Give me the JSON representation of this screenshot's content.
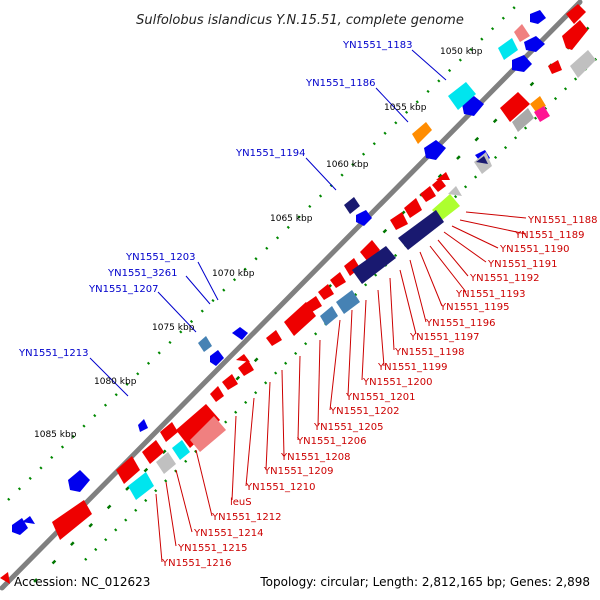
{
  "title": "Sulfolobus islandicus Y.N.15.51, complete genome",
  "footer": {
    "accession": "Accession: NC_012623",
    "topology": "Topology: circular; Length: 2,812,165 bp; Genes: 2,898"
  },
  "ruler_ticks": [
    "1050 kbp",
    "1055 kbp",
    "1060 kbp",
    "1065 kbp",
    "1070 kbp",
    "1075 kbp",
    "1080 kbp",
    "1085 kbp"
  ],
  "outer_labels": [
    "YN1551_1183",
    "YN1551_1186",
    "YN1551_1194",
    "YN1551_1203",
    "YN1551_3261",
    "YN1551_1207",
    "YN1551_1213"
  ],
  "inner_labels": [
    "YN1551_1188",
    "YN1551_1189",
    "YN1551_1190",
    "YN1551_1191",
    "YN1551_1192",
    "YN1551_1193",
    "YN1551_1195",
    "YN1551_1196",
    "YN1551_1197",
    "YN1551_1198",
    "YN1551_1199",
    "YN1551_1200",
    "YN1551_1201",
    "YN1551_1202",
    "YN1551_1205",
    "YN1551_1206",
    "YN1551_1208",
    "YN1551_1209",
    "YN1551_1210",
    "leuS",
    "YN1551_1212",
    "YN1551_1214",
    "YN1551_1215",
    "YN1551_1216"
  ],
  "colors": {
    "outer_label": "#0000cc",
    "inner_label": "#cc0000",
    "forward_gene": "#0000ee",
    "reverse_gene": "#ee0000",
    "backbone": "#808080",
    "tick_dots": "#008800"
  },
  "feature_colors": [
    "#00e5ee",
    "#ff8c00",
    "#191970",
    "#4682b4",
    "#f08080",
    "#c0c0c0",
    "#a9a9a9",
    "#adff2f",
    "#ff1493"
  ]
}
